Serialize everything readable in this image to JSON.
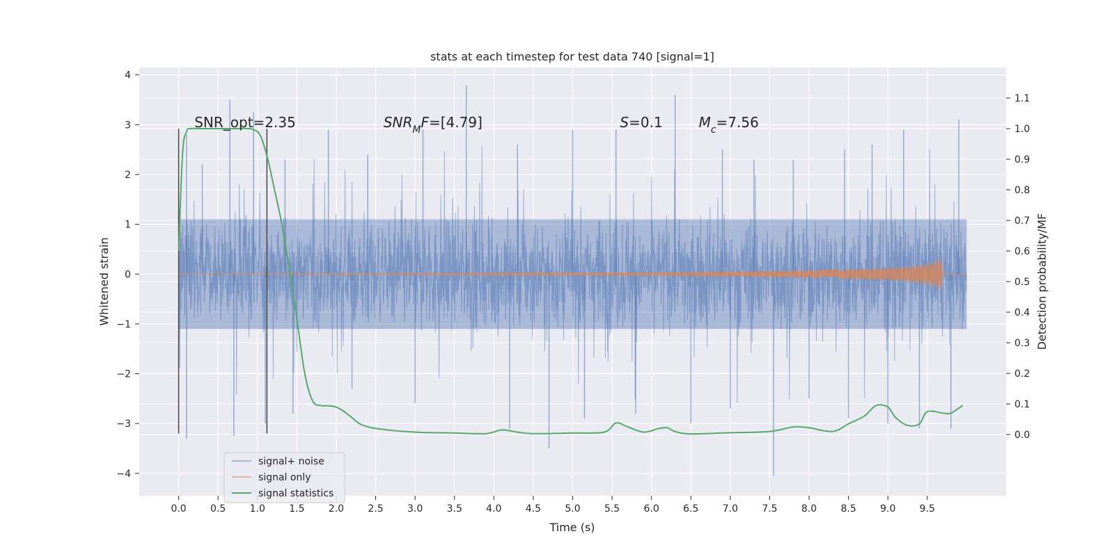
{
  "chart_data": {
    "type": "line",
    "title": "stats at each timestep for test data 740 [signal=1]",
    "xlabel": "Time (s)",
    "ylabel_left": "Whitened strain",
    "ylabel_right": "Detection probability/MF",
    "xlim": [
      -0.5,
      10.5
    ],
    "ylim_left": [
      -4.45,
      4.15
    ],
    "ylim_right": [
      -0.2,
      1.2
    ],
    "x_ticks": [
      "0.0",
      "0.5",
      "1.0",
      "1.5",
      "2.0",
      "2.5",
      "3.0",
      "3.5",
      "4.0",
      "4.5",
      "5.0",
      "5.5",
      "6.0",
      "6.5",
      "7.0",
      "7.5",
      "8.0",
      "8.5",
      "9.0",
      "9.5"
    ],
    "y_ticks_left": [
      "−4",
      "−3",
      "−2",
      "−1",
      "0",
      "1",
      "2",
      "3",
      "4"
    ],
    "y_ticks_right": [
      "0.0",
      "0.1",
      "0.2",
      "0.3",
      "0.4",
      "0.5",
      "0.6",
      "0.7",
      "0.8",
      "0.9",
      "1.0",
      "1.1"
    ],
    "grid": true,
    "legend_position": "lower-left",
    "colors": {
      "background": "#eaeaf2",
      "grid": "#ffffff",
      "signal_noise": "#4c72b0",
      "signal_only": "#dd8452",
      "statistics": "#55a868",
      "vline": "#444444"
    },
    "annotations": [
      {
        "text": "SNR_opt=2.35",
        "x": 0.2,
        "y_right": 1.0
      },
      {
        "text": "SNR_MF=[4.79]",
        "x": 2.6,
        "y_right": 1.0,
        "math": true
      },
      {
        "text": "S=0.1",
        "x": 5.6,
        "y_right": 1.0,
        "math": true
      },
      {
        "text": "M_c=7.56",
        "x": 6.6,
        "y_right": 1.0,
        "math": true
      }
    ],
    "vertical_lines": [
      0.0,
      1.12
    ],
    "series": [
      {
        "name": "signal+ noise",
        "description": "whitened strain noise band approx. ±1.1 with spikes up to ±4",
        "t_range": [
          0.0,
          10.0
        ],
        "envelope": [
          -1.1,
          1.1
        ],
        "spikes_high": [
          [
            0.1,
            2.8
          ],
          [
            0.3,
            2.2
          ],
          [
            0.65,
            3.5
          ],
          [
            0.95,
            3.25
          ],
          [
            1.35,
            2.3
          ],
          [
            1.9,
            2.9
          ],
          [
            2.4,
            2.4
          ],
          [
            3.1,
            2.9
          ],
          [
            3.65,
            3.8
          ],
          [
            4.3,
            2.6
          ],
          [
            5.0,
            2.9
          ],
          [
            5.55,
            2.9
          ],
          [
            6.3,
            3.6
          ],
          [
            6.9,
            2.5
          ],
          [
            7.3,
            2.3
          ],
          [
            7.8,
            2.3
          ],
          [
            8.45,
            2.5
          ],
          [
            8.8,
            2.6
          ],
          [
            9.2,
            2.9
          ],
          [
            9.9,
            3.1
          ]
        ],
        "spikes_low": [
          [
            0.1,
            -3.3
          ],
          [
            0.7,
            -3.25
          ],
          [
            1.1,
            -3.0
          ],
          [
            1.45,
            -2.8
          ],
          [
            2.2,
            -2.3
          ],
          [
            3.0,
            -2.6
          ],
          [
            4.2,
            -3.1
          ],
          [
            4.7,
            -3.5
          ],
          [
            5.15,
            -2.9
          ],
          [
            5.8,
            -2.8
          ],
          [
            6.5,
            -3.0
          ],
          [
            7.0,
            -2.7
          ],
          [
            7.55,
            -4.05
          ],
          [
            8.0,
            -2.5
          ],
          [
            8.5,
            -2.9
          ],
          [
            9.0,
            -3.0
          ],
          [
            9.4,
            -3.1
          ],
          [
            9.8,
            -3.1
          ]
        ]
      },
      {
        "name": "signal only",
        "description": "chirp amplitude growing toward merger at about 9.7 s",
        "x": [
          0.0,
          6.0,
          7.0,
          8.0,
          8.5,
          9.0,
          9.3,
          9.5,
          9.6,
          9.68,
          9.7
        ],
        "amplitude": [
          0.01,
          0.03,
          0.05,
          0.08,
          0.1,
          0.13,
          0.17,
          0.22,
          0.27,
          0.32,
          0.0
        ]
      },
      {
        "name": "signal statistics",
        "axis": "right",
        "x": [
          0.0,
          0.05,
          0.1,
          0.15,
          0.3,
          0.5,
          0.7,
          0.9,
          1.0,
          1.05,
          1.1,
          1.15,
          1.2,
          1.3,
          1.4,
          1.5,
          1.6,
          1.7,
          1.8,
          1.9,
          2.0,
          2.1,
          2.2,
          2.3,
          2.5,
          3.0,
          3.5,
          3.9,
          4.1,
          4.3,
          4.5,
          5.0,
          5.4,
          5.55,
          5.7,
          5.9,
          6.1,
          6.2,
          6.3,
          6.5,
          7.0,
          7.5,
          7.8,
          8.0,
          8.3,
          8.5,
          8.7,
          8.85,
          9.0,
          9.1,
          9.25,
          9.4,
          9.5,
          9.7,
          9.8,
          9.95
        ],
        "y": [
          0.6,
          0.92,
          0.99,
          1.0,
          1.0,
          1.0,
          1.0,
          1.0,
          0.99,
          0.97,
          0.93,
          0.88,
          0.82,
          0.7,
          0.55,
          0.38,
          0.2,
          0.11,
          0.095,
          0.094,
          0.09,
          0.075,
          0.055,
          0.035,
          0.02,
          0.008,
          0.005,
          0.003,
          0.015,
          0.008,
          0.003,
          0.005,
          0.008,
          0.038,
          0.025,
          0.008,
          0.02,
          0.022,
          0.01,
          0.002,
          0.006,
          0.01,
          0.025,
          0.022,
          0.01,
          0.035,
          0.06,
          0.095,
          0.09,
          0.055,
          0.03,
          0.035,
          0.075,
          0.07,
          0.07,
          0.095
        ]
      }
    ]
  }
}
